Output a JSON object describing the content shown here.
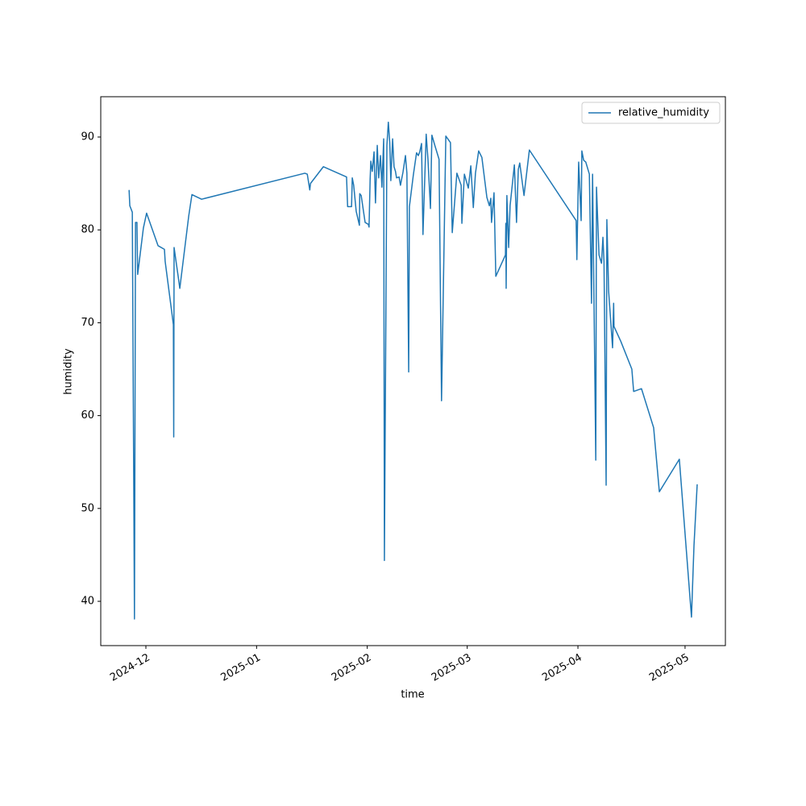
{
  "chart_data": {
    "type": "line",
    "xlabel": "time",
    "ylabel": "humidity",
    "x": [
      20053.3,
      20053.5,
      20054.2,
      20054.8,
      20055.1,
      20055.5,
      20055.7,
      20057.3,
      20058.2,
      20061.4,
      20063.2,
      20063.4,
      20065.7,
      20065.8,
      20065.9,
      20067.0,
      20067.5,
      20070.0,
      20070.9,
      20073.6,
      20102.5,
      20103.2,
      20103.9,
      20104.1,
      20107.7,
      20114.2,
      20114.5,
      20115.6,
      20115.8,
      20116.2,
      20116.9,
      20117.8,
      20117.9,
      20118.3,
      20119.4,
      20120.3,
      20120.5,
      20120.8,
      20121.0,
      20121.4,
      20121.9,
      20122.3,
      20122.8,
      20123.2,
      20123.7,
      20124.1,
      20124.6,
      20124.8,
      20125.5,
      20125.9,
      20126.3,
      20126.6,
      20127.1,
      20127.5,
      20127.9,
      20128.2,
      20128.9,
      20129.3,
      20130.0,
      20130.7,
      20131.1,
      20131.6,
      20131.8,
      20132.9,
      20133.8,
      20134.3,
      20134.7,
      20135.2,
      20135.6,
      20136.5,
      20137.0,
      20137.7,
      20138.1,
      20139.0,
      20140.1,
      20140.8,
      20142.0,
      20143.3,
      20143.8,
      20145.1,
      20146.3,
      20146.5,
      20147.2,
      20148.3,
      20149.0,
      20149.7,
      20150.3,
      20151.2,
      20152.1,
      20153.5,
      20154.2,
      20154.6,
      20154.8,
      20155.5,
      20156.0,
      20158.7,
      20158.8,
      20158.9,
      20159.1,
      20159.6,
      20160.0,
      20161.2,
      20161.8,
      20162.3,
      20162.7,
      20163.9,
      20165.4,
      20178.5,
      20178.7,
      20179.0,
      20179.2,
      20179.9,
      20180.1,
      20180.6,
      20181.2,
      20182.2,
      20182.8,
      20183.1,
      20184.0,
      20184.2,
      20184.9,
      20185.6,
      20186.0,
      20186.3,
      20186.9,
      20187.1,
      20187.6,
      20188.7,
      20189.0,
      20189.1,
      20191.0,
      20194.1,
      20194.6,
      20196.8,
      20200.2,
      20201.8,
      20207.4,
      20210.8,
      20211.5,
      20212.4
    ],
    "series": [
      {
        "name": "relative_humidity",
        "color": "#1f77b4",
        "values": [
          84.3,
          82.6,
          81.9,
          38.1,
          80.8,
          80.8,
          75.2,
          80.2,
          81.8,
          78.3,
          77.9,
          76.6,
          69.8,
          57.7,
          78.1,
          75.1,
          73.7,
          81.5,
          83.8,
          83.3,
          86.1,
          86.0,
          84.3,
          85.0,
          86.8,
          85.7,
          82.5,
          82.5,
          85.6,
          84.8,
          82.0,
          80.5,
          83.9,
          83.7,
          80.8,
          80.6,
          80.3,
          85.4,
          87.4,
          86.3,
          88.4,
          82.9,
          89.1,
          85.6,
          88.0,
          84.6,
          89.8,
          44.4,
          89.1,
          91.6,
          89.4,
          85.3,
          89.8,
          86.8,
          86.3,
          85.6,
          85.7,
          84.8,
          86.2,
          88.0,
          86.1,
          64.7,
          82.5,
          85.9,
          88.3,
          88.0,
          88.4,
          89.3,
          79.5,
          90.3,
          87.6,
          82.3,
          90.2,
          89.0,
          87.6,
          61.6,
          90.1,
          89.4,
          79.7,
          86.1,
          84.8,
          80.7,
          86.0,
          84.5,
          86.9,
          82.4,
          86.1,
          88.5,
          87.8,
          83.5,
          82.6,
          83.4,
          80.8,
          84.0,
          75.0,
          77.3,
          80.7,
          73.7,
          83.7,
          78.1,
          82.6,
          87.0,
          80.8,
          86.5,
          87.2,
          83.7,
          88.6,
          81.0,
          76.8,
          83.0,
          87.3,
          81.0,
          88.5,
          87.5,
          87.3,
          86.0,
          72.1,
          86.0,
          55.2,
          84.6,
          77.3,
          76.4,
          79.2,
          76.6,
          52.5,
          81.1,
          73.4,
          67.3,
          72.1,
          69.6,
          68.0,
          65.0,
          62.6,
          62.9,
          58.7,
          51.8,
          55.3,
          38.3,
          46.0,
          52.6
        ]
      }
    ],
    "xlim": [
      20045.36,
      20220.3
    ],
    "xticks": [
      {
        "value": 20058,
        "label": "2024-12"
      },
      {
        "value": 20089,
        "label": "2025-01"
      },
      {
        "value": 20120,
        "label": "2025-02"
      },
      {
        "value": 20148,
        "label": "2025-03"
      },
      {
        "value": 20179,
        "label": "2025-04"
      },
      {
        "value": 20209,
        "label": "2025-05"
      }
    ],
    "ylim": [
      35.23,
      94.34
    ],
    "yticks": [
      40,
      50,
      60,
      70,
      80,
      90
    ],
    "legend": "upper right"
  }
}
